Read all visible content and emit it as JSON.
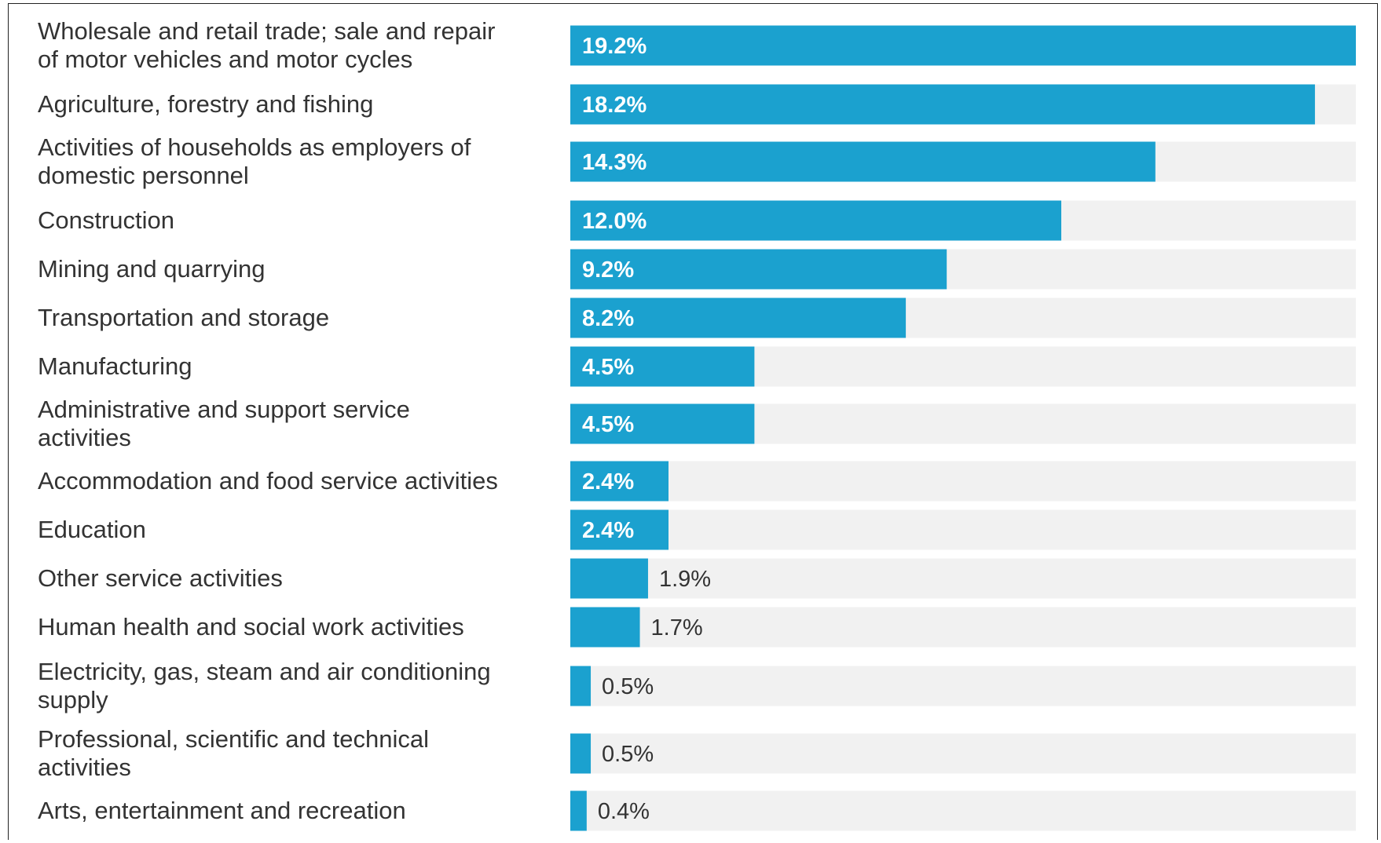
{
  "chart_data": {
    "type": "bar",
    "orientation": "horizontal",
    "title": "",
    "xlabel": "",
    "ylabel": "",
    "categories": [
      [
        "Wholesale and retail trade; sale and repair",
        "of motor vehicles and motor cycles"
      ],
      [
        "Agriculture, forestry and fishing"
      ],
      [
        "Activities of households as employers of",
        "domestic personnel"
      ],
      [
        "Construction"
      ],
      [
        "Mining and quarrying"
      ],
      [
        "Transportation and storage"
      ],
      [
        "Manufacturing"
      ],
      [
        "Administrative and support service",
        "activities"
      ],
      [
        "Accommodation and food service activities"
      ],
      [
        "Education"
      ],
      [
        "Other service activities"
      ],
      [
        "Human health and social work activities"
      ],
      [
        "Electricity, gas, steam and air conditioning",
        "supply"
      ],
      [
        "Professional, scientific and technical",
        "activities"
      ],
      [
        "Arts, entertainment and recreation"
      ]
    ],
    "values": [
      19.2,
      18.2,
      14.3,
      12.0,
      9.2,
      8.2,
      4.5,
      4.5,
      2.4,
      2.4,
      1.9,
      1.7,
      0.5,
      0.5,
      0.4
    ],
    "value_labels": [
      "19.2%",
      "18.2%",
      "14.3%",
      "12.0%",
      "9.2%",
      "8.2%",
      "4.5%",
      "4.5%",
      "2.4%",
      "2.4%",
      "1.9%",
      "1.7%",
      "0.5%",
      "0.5%",
      "0.4%"
    ],
    "xlim": [
      0,
      19.2
    ],
    "grid": false,
    "legend": "none",
    "colors": {
      "bar": "#1ba1cf",
      "track": "#f1f1f1",
      "label_inside": "#ffffff",
      "label_outside": "#333333",
      "category_text": "#333333"
    }
  }
}
